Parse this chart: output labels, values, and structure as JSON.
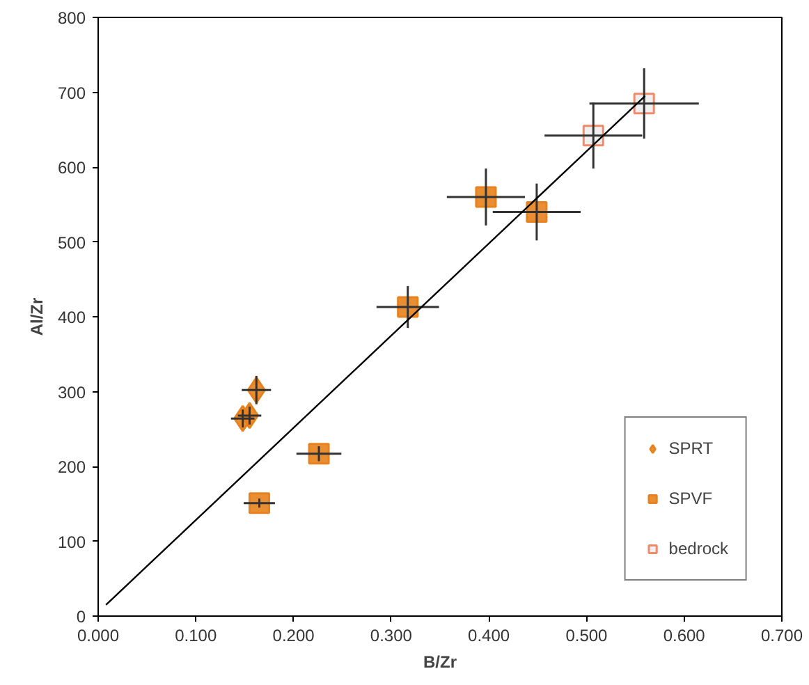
{
  "chart_data": {
    "type": "scatter",
    "xlabel": "B/Zr",
    "ylabel": "Al/Zr",
    "xlim": [
      0,
      0.7
    ],
    "ylim": [
      0,
      800
    ],
    "xticks": [
      {
        "value": 0,
        "label": "0.000"
      },
      {
        "value": 0.1,
        "label": "0.100"
      },
      {
        "value": 0.2,
        "label": "0.200"
      },
      {
        "value": 0.3,
        "label": "0.300"
      },
      {
        "value": 0.4,
        "label": "0.400"
      },
      {
        "value": 0.5,
        "label": "0.500"
      },
      {
        "value": 0.6,
        "label": "0.600"
      },
      {
        "value": 0.7,
        "label": "0.700"
      }
    ],
    "yticks": [
      0,
      100,
      200,
      300,
      400,
      500,
      600,
      700,
      800
    ],
    "grid": false,
    "legend": "bottom right",
    "series": [
      {
        "name": "SPRT",
        "marker": "diamond",
        "color": "#e8821e",
        "x": [
          0.162,
          0.148,
          0.155
        ],
        "values": [
          302,
          264,
          268
        ],
        "xerrors": [
          0.015,
          0.012,
          0.012
        ],
        "errors": [
          19,
          12,
          12
        ]
      },
      {
        "name": "SPVF",
        "marker": "square",
        "color": "#e8821e",
        "x": [
          0.165,
          0.226,
          0.317,
          0.397,
          0.449
        ],
        "values": [
          151,
          217,
          413,
          560,
          540
        ],
        "xerrors": [
          0.016,
          0.023,
          0.032,
          0.04,
          0.045
        ],
        "errors": [
          6,
          10,
          28,
          38,
          38
        ]
      },
      {
        "name": "bedrock",
        "marker": "square",
        "color": "#f08a6a",
        "x": [
          0.507,
          0.559
        ],
        "values": [
          642,
          685
        ],
        "xerrors": [
          0.05,
          0.056
        ],
        "errors": [
          44,
          47
        ]
      },
      {
        "type": "line",
        "color": "#000000",
        "x": [
          0.008,
          0.56
        ],
        "values": [
          15,
          695
        ]
      }
    ]
  }
}
